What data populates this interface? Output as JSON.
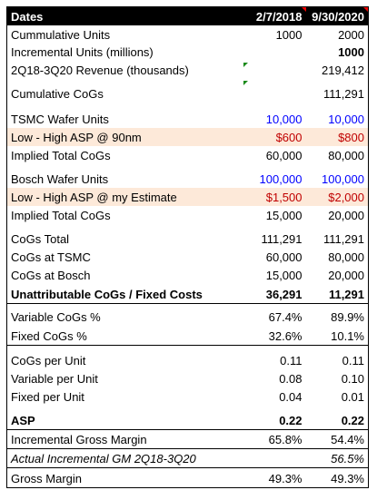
{
  "header": {
    "label": "Dates",
    "columns": [
      "2/7/2018",
      "9/30/2020"
    ]
  },
  "rows": [
    [
      "Cummulative Units",
      "1000",
      "2000"
    ],
    [
      "Incremental Units (millions)",
      null,
      "1000"
    ],
    [
      "2Q18-3Q20 Revenue (thousands)",
      null,
      "219,412"
    ],
    [
      "Cumulative CoGs",
      null,
      "111,291"
    ],
    [
      "TSMC Wafer Units",
      "10,000",
      "10,000"
    ],
    [
      "Low - High ASP @ 90nm",
      "$600",
      "$800"
    ],
    [
      "Implied Total CoGs",
      "60,000",
      "80,000"
    ],
    [
      "Bosch Wafer Units",
      "100,000",
      "100,000"
    ],
    [
      "Low - High ASP @ my Estimate",
      "$1,500",
      "$2,000"
    ],
    [
      "Implied Total CoGs",
      "15,000",
      "20,000"
    ],
    [
      "CoGs Total",
      "111,291",
      "111,291"
    ],
    [
      "CoGs at TSMC",
      "60,000",
      "80,000"
    ],
    [
      "CoGs at Bosch",
      "15,000",
      "20,000"
    ],
    [
      "Unattributable CoGs / Fixed Costs",
      "36,291",
      "11,291"
    ],
    [
      "Variable CoGs %",
      "67.4%",
      "89.9%"
    ],
    [
      "Fixed CoGs %",
      "32.6%",
      "10.1%"
    ],
    [
      "CoGs per Unit",
      "0.11",
      "0.11"
    ],
    [
      "Variable per Unit",
      "0.08",
      "0.10"
    ],
    [
      "Fixed per Unit",
      "0.04",
      "0.01"
    ],
    [
      "ASP",
      "0.22",
      "0.22"
    ],
    [
      "Incremental Gross Margin",
      "65.8%",
      "54.4%"
    ],
    [
      "Actual Incremental GM 2Q18-3Q20",
      null,
      "56.5%"
    ],
    [
      "Gross Margin",
      "49.3%",
      "49.3%"
    ]
  ]
}
